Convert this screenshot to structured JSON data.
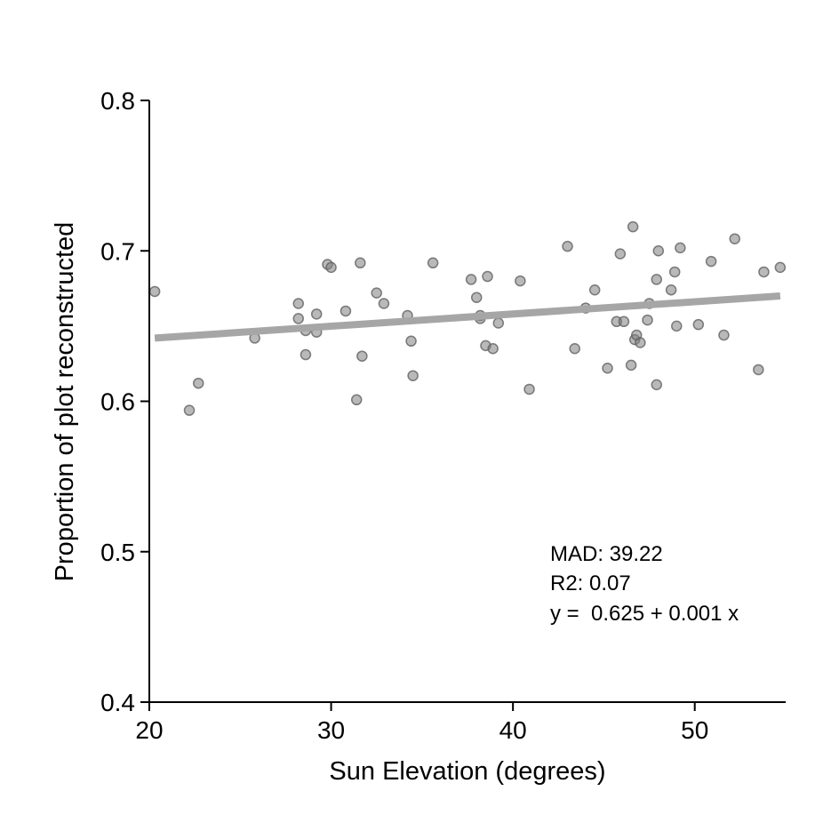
{
  "chart_data": {
    "type": "scatter",
    "xlabel": "Sun Elevation (degrees)",
    "ylabel": "Proportion of plot reconstructed",
    "xlim": [
      20,
      55
    ],
    "ylim": [
      0.4,
      0.8
    ],
    "x_ticks": [
      20,
      30,
      40,
      50
    ],
    "x_tick_labels": [
      "20",
      "30",
      "40",
      "50"
    ],
    "y_ticks": [
      0.4,
      0.5,
      0.6,
      0.7,
      0.8
    ],
    "y_tick_labels": [
      "0.4",
      "0.5",
      "0.6",
      "0.7",
      "0.8"
    ],
    "grid": false,
    "point_color": "#808080",
    "line_color": "#a6a6a6",
    "points": [
      {
        "x": 20.3,
        "y": 0.673
      },
      {
        "x": 22.2,
        "y": 0.594
      },
      {
        "x": 22.7,
        "y": 0.612
      },
      {
        "x": 25.8,
        "y": 0.642
      },
      {
        "x": 28.2,
        "y": 0.665
      },
      {
        "x": 28.2,
        "y": 0.655
      },
      {
        "x": 28.6,
        "y": 0.647
      },
      {
        "x": 28.6,
        "y": 0.631
      },
      {
        "x": 29.2,
        "y": 0.658
      },
      {
        "x": 29.2,
        "y": 0.646
      },
      {
        "x": 29.8,
        "y": 0.691
      },
      {
        "x": 30.0,
        "y": 0.689
      },
      {
        "x": 30.8,
        "y": 0.66
      },
      {
        "x": 31.4,
        "y": 0.601
      },
      {
        "x": 31.6,
        "y": 0.692
      },
      {
        "x": 31.7,
        "y": 0.63
      },
      {
        "x": 32.5,
        "y": 0.672
      },
      {
        "x": 32.9,
        "y": 0.665
      },
      {
        "x": 34.2,
        "y": 0.657
      },
      {
        "x": 34.4,
        "y": 0.64
      },
      {
        "x": 34.5,
        "y": 0.617
      },
      {
        "x": 35.6,
        "y": 0.692
      },
      {
        "x": 37.7,
        "y": 0.681
      },
      {
        "x": 38.0,
        "y": 0.669
      },
      {
        "x": 38.2,
        "y": 0.657
      },
      {
        "x": 38.2,
        "y": 0.655
      },
      {
        "x": 38.5,
        "y": 0.637
      },
      {
        "x": 38.6,
        "y": 0.683
      },
      {
        "x": 38.9,
        "y": 0.635
      },
      {
        "x": 39.2,
        "y": 0.652
      },
      {
        "x": 40.4,
        "y": 0.68
      },
      {
        "x": 40.9,
        "y": 0.608
      },
      {
        "x": 43.0,
        "y": 0.703
      },
      {
        "x": 43.4,
        "y": 0.635
      },
      {
        "x": 44.0,
        "y": 0.662
      },
      {
        "x": 44.5,
        "y": 0.674
      },
      {
        "x": 45.2,
        "y": 0.622
      },
      {
        "x": 45.7,
        "y": 0.653
      },
      {
        "x": 45.9,
        "y": 0.698
      },
      {
        "x": 46.1,
        "y": 0.653
      },
      {
        "x": 46.5,
        "y": 0.624
      },
      {
        "x": 46.6,
        "y": 0.716
      },
      {
        "x": 46.7,
        "y": 0.641
      },
      {
        "x": 46.8,
        "y": 0.644
      },
      {
        "x": 47.0,
        "y": 0.639
      },
      {
        "x": 47.4,
        "y": 0.654
      },
      {
        "x": 47.5,
        "y": 0.665
      },
      {
        "x": 47.9,
        "y": 0.681
      },
      {
        "x": 47.9,
        "y": 0.611
      },
      {
        "x": 48.0,
        "y": 0.7
      },
      {
        "x": 48.7,
        "y": 0.674
      },
      {
        "x": 48.9,
        "y": 0.686
      },
      {
        "x": 49.0,
        "y": 0.65
      },
      {
        "x": 49.2,
        "y": 0.702
      },
      {
        "x": 50.2,
        "y": 0.651
      },
      {
        "x": 50.9,
        "y": 0.693
      },
      {
        "x": 51.6,
        "y": 0.644
      },
      {
        "x": 52.2,
        "y": 0.708
      },
      {
        "x": 53.5,
        "y": 0.621
      },
      {
        "x": 53.8,
        "y": 0.686
      },
      {
        "x": 54.7,
        "y": 0.689
      }
    ],
    "trendline": {
      "x": [
        20.3,
        54.7
      ],
      "y": [
        0.642,
        0.67
      ]
    },
    "annotations": [
      "MAD: 39.22",
      "R2: 0.07",
      "y =  0.625 + 0.001 x"
    ]
  }
}
